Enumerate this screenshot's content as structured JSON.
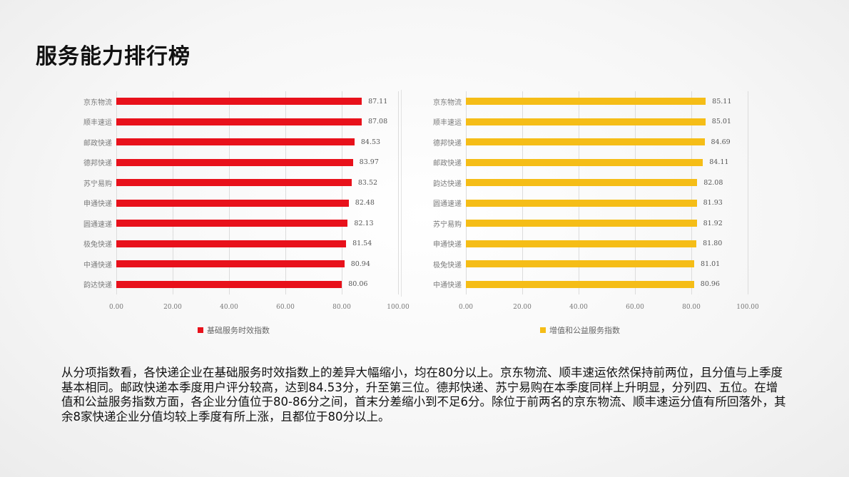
{
  "page": {
    "title": "服务能力排行榜",
    "paragraph": "从分项指数看，各快递企业在基础服务时效指数上的差异大幅缩小，均在80分以上。京东物流、顺丰速运依然保持前两位，且分值与上季度基本相同。邮政快递本季度用户评分较高，达到84.53分，升至第三位。德邦快递、苏宁易购在本季度同样上升明显，分列四、五位。在增值和公益服务指数方面，各企业分值位于80-86分之间，首末分差缩小到不足6分。除位于前两名的京东物流、顺丰速运分值有所回落外，其余8家快递企业分值均较上季度有所上涨，且都位于80分以上。"
  },
  "colors": {
    "left_bar": "#e8111b",
    "right_bar": "#f5bd17"
  },
  "chart_data": [
    {
      "type": "bar",
      "orientation": "horizontal",
      "title": "",
      "legend": "基础服务时效指数",
      "legend_position": "bottom",
      "categories": [
        "京东物流",
        "顺丰速运",
        "邮政快递",
        "德邦快递",
        "苏宁易购",
        "申通快递",
        "圆通速递",
        "极兔快递",
        "中通快递",
        "韵达快递"
      ],
      "values": [
        87.11,
        87.08,
        84.53,
        83.97,
        83.52,
        82.48,
        82.13,
        81.54,
        80.94,
        80.06
      ],
      "value_labels": [
        "87.11",
        "87.08",
        "84.53",
        "83.97",
        "83.52",
        "82.48",
        "82.13",
        "81.54",
        "80.94",
        "80.06"
      ],
      "xlim": [
        0,
        100
      ],
      "xticks": [
        "0.00",
        "20.00",
        "40.00",
        "60.00",
        "80.00",
        "100.00"
      ],
      "grid": true,
      "color": "#e8111b"
    },
    {
      "type": "bar",
      "orientation": "horizontal",
      "title": "",
      "legend": "增值和公益服务指数",
      "legend_position": "bottom",
      "categories": [
        "京东物流",
        "顺丰速运",
        "德邦快递",
        "邮政快递",
        "韵达快递",
        "圆通速递",
        "苏宁易购",
        "申通快递",
        "极兔快递",
        "中通快递"
      ],
      "values": [
        85.11,
        85.01,
        84.69,
        84.11,
        82.08,
        81.93,
        81.92,
        81.8,
        81.01,
        80.96
      ],
      "value_labels": [
        "85.11",
        "85.01",
        "84.69",
        "84.11",
        "82.08",
        "81.93",
        "81.92",
        "81.80",
        "81.01",
        "80.96"
      ],
      "xlim": [
        0,
        100
      ],
      "xticks": [
        "0.00",
        "20.00",
        "40.00",
        "60.00",
        "80.00",
        "100.00"
      ],
      "grid": true,
      "color": "#f5bd17"
    }
  ]
}
